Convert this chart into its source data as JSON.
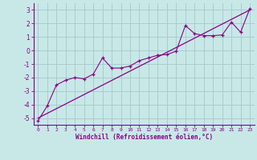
{
  "xlabel": "Windchill (Refroidissement éolien,°C)",
  "bg_color": "#c8e8e8",
  "grid_color": "#a8cccc",
  "line_color": "#880088",
  "xlim": [
    -0.5,
    23.5
  ],
  "ylim": [
    -5.5,
    3.5
  ],
  "xticks": [
    0,
    1,
    2,
    3,
    4,
    5,
    6,
    7,
    8,
    9,
    10,
    11,
    12,
    13,
    14,
    15,
    16,
    17,
    18,
    19,
    20,
    21,
    22,
    23
  ],
  "yticks": [
    -5,
    -4,
    -3,
    -2,
    -1,
    0,
    1,
    2,
    3
  ],
  "data_x": [
    0,
    1,
    2,
    3,
    4,
    5,
    6,
    7,
    8,
    9,
    10,
    11,
    12,
    13,
    14,
    15,
    16,
    17,
    18,
    19,
    20,
    21,
    22,
    23
  ],
  "data_y": [
    -5.2,
    -4.1,
    -2.55,
    -2.2,
    -2.0,
    -2.1,
    -1.75,
    -0.55,
    -1.3,
    -1.3,
    -1.15,
    -0.75,
    -0.55,
    -0.35,
    -0.3,
    -0.05,
    1.85,
    1.25,
    1.1,
    1.1,
    1.15,
    2.1,
    1.35,
    3.1
  ],
  "trend_x": [
    0,
    23
  ],
  "trend_y": [
    -5.0,
    3.0
  ]
}
